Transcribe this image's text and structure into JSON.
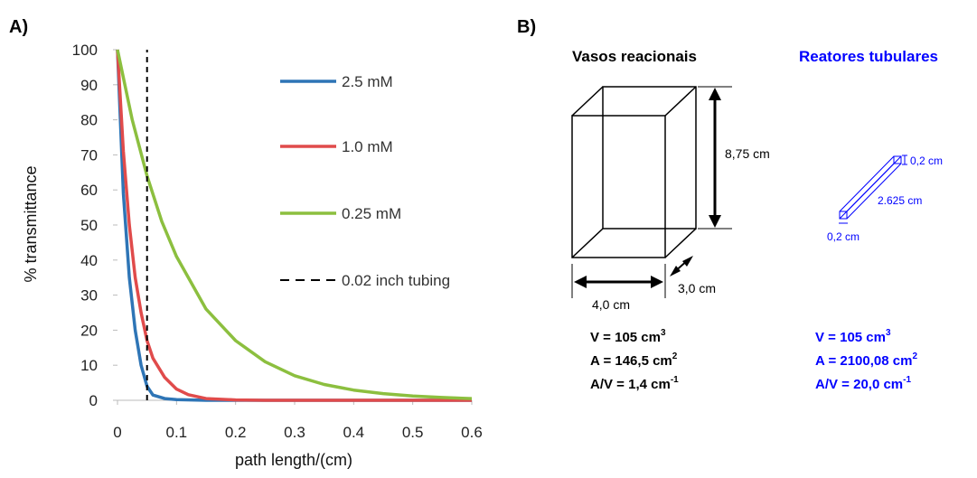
{
  "panel_a": {
    "label": "A)",
    "chart_data": {
      "type": "line",
      "title": "",
      "xlabel": "path length/(cm)",
      "ylabel": "% transmittance",
      "xlim": [
        0,
        0.6
      ],
      "ylim": [
        0,
        100
      ],
      "x_ticks": [
        "0",
        "0.1",
        "0.2",
        "0.3",
        "0.4",
        "0.5",
        "0.6"
      ],
      "y_ticks": [
        "0",
        "10",
        "20",
        "30",
        "40",
        "50",
        "60",
        "70",
        "80",
        "90",
        "100"
      ],
      "grid": false,
      "legend_position": "right",
      "series": [
        {
          "name": "2.5 mM",
          "color": "#2e75b6",
          "style": "solid",
          "x": [
            0,
            0.01,
            0.02,
            0.03,
            0.04,
            0.05,
            0.06,
            0.08,
            0.1,
            0.15,
            0.2,
            0.3,
            0.4,
            0.5,
            0.6
          ],
          "y": [
            100,
            59,
            35,
            20,
            10,
            4,
            1.5,
            0.5,
            0.2,
            0,
            0,
            0,
            0,
            0,
            0
          ]
        },
        {
          "name": "1.0 mM",
          "color": "#e04b4b",
          "style": "solid",
          "x": [
            0,
            0.01,
            0.02,
            0.03,
            0.04,
            0.05,
            0.06,
            0.08,
            0.1,
            0.12,
            0.15,
            0.2,
            0.25,
            0.3,
            0.4,
            0.5,
            0.6
          ],
          "y": [
            100,
            71,
            50,
            35,
            25,
            17,
            12,
            6.5,
            3.2,
            1.6,
            0.5,
            0.1,
            0,
            0,
            0,
            0,
            0
          ]
        },
        {
          "name": "0.25 mM",
          "color": "#8cbf3f",
          "style": "solid",
          "x": [
            0,
            0.025,
            0.05,
            0.075,
            0.1,
            0.15,
            0.2,
            0.25,
            0.3,
            0.35,
            0.4,
            0.45,
            0.5,
            0.55,
            0.6
          ],
          "y": [
            100,
            80,
            64,
            51,
            41,
            26,
            17,
            11,
            7,
            4.5,
            2.9,
            1.9,
            1.2,
            0.8,
            0.5
          ]
        },
        {
          "name": "0.02 inch tubing",
          "color": "#000000",
          "style": "dashed",
          "x": [
            0.05,
            0.05
          ],
          "y": [
            0,
            100
          ]
        }
      ]
    }
  },
  "panel_b": {
    "label": "B)",
    "vessel": {
      "title": "Vasos reacionais",
      "height_label": "8,75 cm",
      "width_label": "4,0 cm",
      "depth_label": "3,0 cm",
      "formula_v": "V  =  105  cm",
      "formula_v_exp": "3",
      "formula_a": "A = 146,5 cm",
      "formula_a_exp": "2",
      "formula_av": "A/V = 1,4 cm",
      "formula_av_exp": "-1"
    },
    "reactor": {
      "title": "Reatores tubulares",
      "side_label_top": "0,2 cm",
      "length_label": "2.625 cm",
      "side_label_bottom": "0,2 cm",
      "formula_v": "V   =   105   cm",
      "formula_v_exp": "3",
      "formula_a": "A = 2100,08 cm",
      "formula_a_exp": "2",
      "formula_av": "A/V = 20,0 cm",
      "formula_av_exp": "-1"
    },
    "colors": {
      "accent_blue": "#0000ff",
      "line_black": "#000000"
    }
  }
}
